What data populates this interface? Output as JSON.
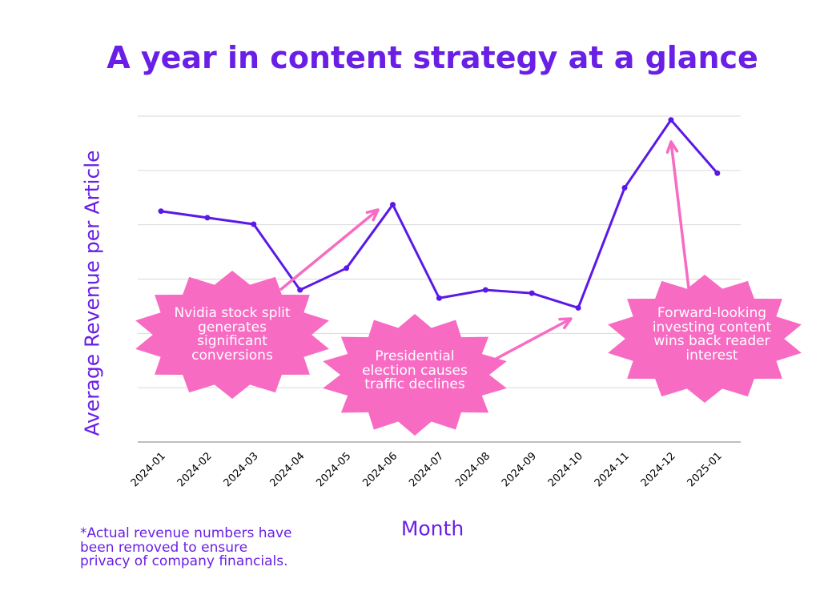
{
  "title": "A year in content strategy at a glance",
  "footnote": "*Actual revenue numbers have been removed to ensure privacy of company financials.",
  "colors": {
    "line": "#5b19e6",
    "accent_text": "#6a1fe6",
    "annotation": "#f76bc3",
    "grid": "#d9d9d9",
    "axis": "#aaaaaa"
  },
  "chart_data": {
    "type": "line",
    "title": "A year in content strategy at a glance",
    "xlabel": "Month",
    "ylabel": "Average Revenue per Article",
    "categories": [
      "2024-01",
      "2024-02",
      "2024-03",
      "2024-04",
      "2024-05",
      "2024-06",
      "2024-07",
      "2024-08",
      "2024-09",
      "2024-10",
      "2024-11",
      "2024-12",
      "2025-01"
    ],
    "values": [
      4.25,
      4.13,
      4.01,
      2.8,
      3.2,
      4.37,
      2.65,
      2.8,
      2.74,
      2.47,
      4.68,
      5.93,
      4.95
    ],
    "ylim": [
      0,
      6
    ],
    "y_tick_labels_shown": false,
    "grid": true,
    "annotations": [
      {
        "text": "Nvidia stock split generates significant conversions"
      },
      {
        "text": "Presidential election causes traffic declines"
      },
      {
        "text": "Forward-looking investing content wins back reader interest"
      }
    ]
  }
}
